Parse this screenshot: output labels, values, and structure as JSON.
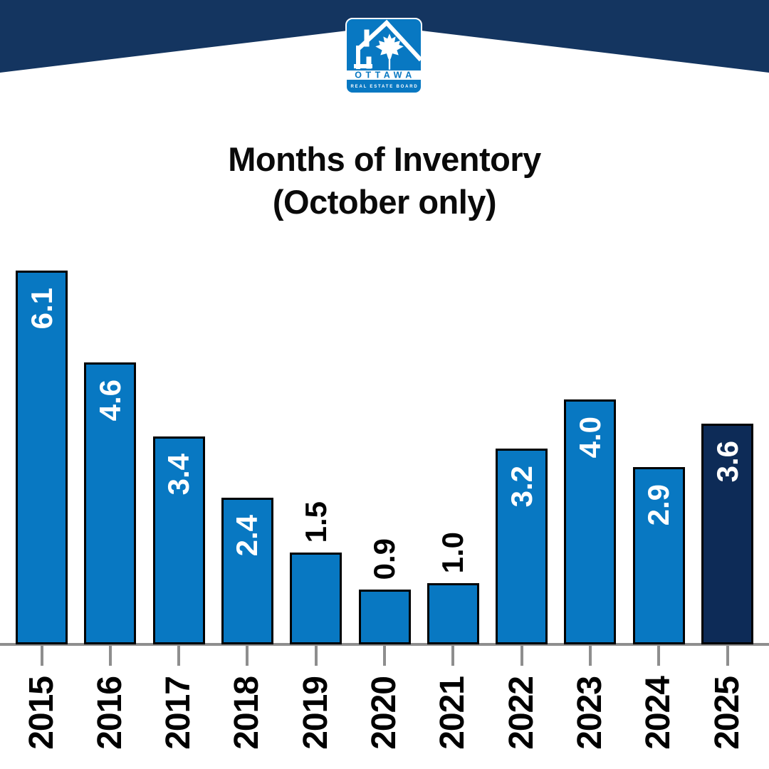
{
  "header": {
    "banner_color": "#143560",
    "logo": {
      "org": "OTTAWA",
      "board": "REAL ESTATE BOARD",
      "logo_color": "#0878c2"
    }
  },
  "chart_data": {
    "type": "bar",
    "title": "Months of Inventory",
    "subtitle": "(October only)",
    "categories": [
      "2015",
      "2016",
      "2017",
      "2018",
      "2019",
      "2020",
      "2021",
      "2022",
      "2023",
      "2024",
      "2025"
    ],
    "values": [
      6.1,
      4.6,
      3.4,
      2.4,
      1.5,
      0.9,
      1.0,
      3.2,
      4.0,
      2.9,
      3.6
    ],
    "value_labels": [
      "6.1",
      "4.6",
      "3.4",
      "2.4",
      "1.5",
      "0.9",
      "1.0",
      "3.2",
      "4.0",
      "2.9",
      "3.6"
    ],
    "xlabel": "",
    "ylabel": "",
    "ylim": [
      0,
      6.3
    ],
    "grid": false,
    "legend": false,
    "bar_color": "#0878c2",
    "highlight_index": 10,
    "highlight_color": "#0d2b57",
    "axis_color": "#8e8e8e",
    "label_rotation_deg": -90,
    "value_label_color_inside": "#ffffff",
    "value_label_color_outside": "#000000"
  }
}
